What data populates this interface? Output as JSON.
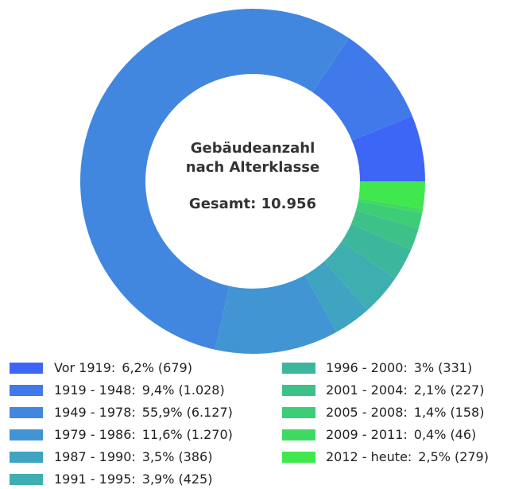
{
  "chart_data": {
    "type": "donut",
    "title": "Gebäudeanzahl nach Alterklasse",
    "total_label": "Gesamt: 10.956",
    "categories": [
      "Vor 1919:",
      "1919 - 1948:",
      "1949 - 1978:",
      "1979 - 1986:",
      "1987 - 1990:",
      "1991 - 1995:",
      "1996 - 2000:",
      "2001 - 2004:",
      "2005 - 2008:",
      "2009 - 2011:",
      "2012 - heute:"
    ],
    "values": [
      6.2,
      9.4,
      55.9,
      11.6,
      3.5,
      3.9,
      3,
      2.1,
      1.4,
      0.4,
      2.5
    ],
    "value_labels": [
      "6,2%",
      "9,4%",
      "55,9%",
      "11,6%",
      "3,5%",
      "3,9%",
      "3%",
      "2,1%",
      "1,4%",
      "0,4%",
      "2,5%"
    ],
    "counts": [
      679,
      1028,
      6127,
      1270,
      386,
      425,
      331,
      227,
      158,
      46,
      279
    ],
    "count_labels": [
      "(679)",
      "(1.028)",
      "(6.127)",
      "(1.270)",
      "(386)",
      "(425)",
      "(331)",
      "(227)",
      "(158)",
      "(46)",
      "(279)"
    ],
    "colors": [
      "#3d66f7",
      "#3f79ea",
      "#4187e0",
      "#4195d2",
      "#3fa3c2",
      "#3eaeb0",
      "#3db79c",
      "#3dc189",
      "#3dcd77",
      "#3fd964",
      "#40e84e"
    ]
  }
}
